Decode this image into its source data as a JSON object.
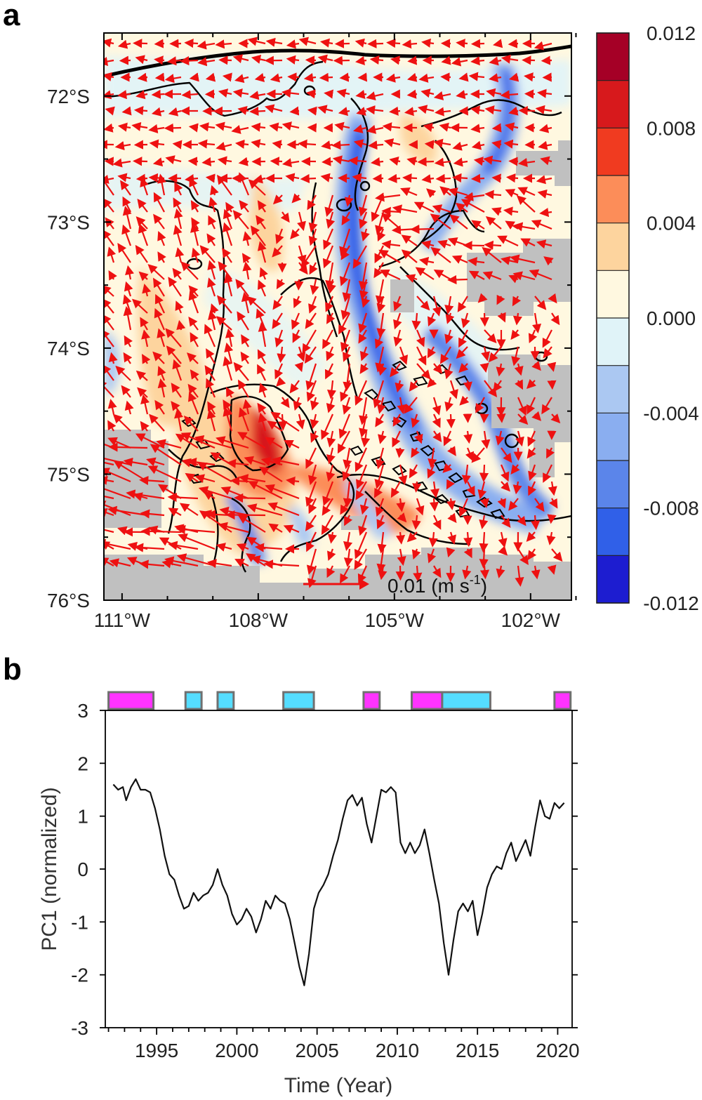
{
  "figure": {
    "panel_a_letter": "a",
    "panel_b_letter": "b"
  },
  "map": {
    "lat_labels": [
      "72°S",
      "73°S",
      "74°S",
      "75°S",
      "76°S"
    ],
    "lat_values": [
      -72,
      -73,
      -74,
      -75,
      -76
    ],
    "lon_labels": [
      "111°W",
      "108°W",
      "105°W",
      "102°W"
    ],
    "lon_values": [
      -111,
      -108,
      -105,
      -102
    ],
    "lon_range": [
      -111.4,
      -101.1
    ],
    "lat_range": [
      -76.0,
      -71.5
    ],
    "colorbar_labels": [
      "0.012",
      "0.008",
      "0.004",
      "0.000",
      "-0.004",
      "-0.008",
      "-0.012"
    ],
    "colorbar_levels": [
      0.012,
      0.01,
      0.008,
      0.006,
      0.004,
      0.002,
      0.0,
      -0.002,
      -0.004,
      -0.006,
      -0.008,
      -0.01,
      -0.012
    ],
    "colorbar_colors": [
      "#a50026",
      "#d7191c",
      "#f03b20",
      "#fc8d59",
      "#fdd49e",
      "#fff8e0",
      "#e0f3f8",
      "#abc8f2",
      "#8aaef0",
      "#5b85ea",
      "#3060e8",
      "#1d1dd0"
    ],
    "reference_arrow_label_main": "0.01 (m s",
    "reference_arrow_label_exp": "-1",
    "reference_arrow_label_close": ")",
    "colors": {
      "arrow": "#ee1111",
      "land": "#c0c0c0",
      "coast": "#000000"
    }
  },
  "chart_data": {
    "type": "line",
    "xlabel": "Time (Year)",
    "ylabel": "PC1 (normalized)",
    "xlim": [
      1991.8,
      2020.9
    ],
    "ylim": [
      -3,
      3
    ],
    "x_ticks": [
      "1995",
      "2000",
      "2005",
      "2010",
      "2015",
      "2020"
    ],
    "x_tick_values": [
      1995,
      2000,
      2005,
      2010,
      2015,
      2020
    ],
    "y_ticks": [
      "3",
      "2",
      "1",
      "0",
      "-1",
      "-2",
      "-3"
    ],
    "y_tick_values": [
      3,
      2,
      1,
      0,
      -1,
      -2,
      -3
    ],
    "series": [
      {
        "color": "#111111",
        "x": [
          1992.3,
          1992.6,
          1992.9,
          1993.1,
          1993.4,
          1993.7,
          1994.0,
          1994.3,
          1994.6,
          1994.9,
          1995.2,
          1995.5,
          1995.8,
          1996.1,
          1996.4,
          1996.7,
          1997.0,
          1997.3,
          1997.6,
          1997.9,
          1998.2,
          1998.5,
          1998.8,
          1999.1,
          1999.4,
          1999.7,
          2000.0,
          2000.3,
          2000.6,
          2000.9,
          2001.2,
          2001.5,
          2001.8,
          2002.1,
          2002.4,
          2002.7,
          2003.0,
          2003.3,
          2003.6,
          2003.9,
          2004.2,
          2004.5,
          2004.8,
          2005.1,
          2005.4,
          2005.7,
          2006.0,
          2006.3,
          2006.6,
          2006.9,
          2007.2,
          2007.5,
          2007.8,
          2008.1,
          2008.4,
          2008.7,
          2009.0,
          2009.3,
          2009.6,
          2009.9,
          2010.2,
          2010.5,
          2010.8,
          2011.1,
          2011.4,
          2011.7,
          2012.0,
          2012.3,
          2012.6,
          2012.9,
          2013.2,
          2013.5,
          2013.8,
          2014.1,
          2014.4,
          2014.7,
          2015.0,
          2015.3,
          2015.6,
          2015.9,
          2016.2,
          2016.5,
          2016.8,
          2017.1,
          2017.4,
          2017.7,
          2018.0,
          2018.3,
          2018.6,
          2018.9,
          2019.2,
          2019.5,
          2019.8,
          2020.1,
          2020.4
        ],
        "values": [
          1.6,
          1.5,
          1.55,
          1.3,
          1.55,
          1.7,
          1.5,
          1.5,
          1.45,
          1.15,
          0.75,
          0.25,
          -0.1,
          -0.2,
          -0.5,
          -0.75,
          -0.7,
          -0.45,
          -0.6,
          -0.5,
          -0.45,
          -0.3,
          0.0,
          -0.3,
          -0.5,
          -0.85,
          -1.05,
          -0.95,
          -0.75,
          -0.9,
          -1.2,
          -0.95,
          -0.6,
          -0.75,
          -0.5,
          -0.6,
          -0.65,
          -0.95,
          -1.4,
          -1.85,
          -2.2,
          -1.6,
          -0.75,
          -0.45,
          -0.3,
          -0.1,
          0.25,
          0.55,
          0.95,
          1.3,
          1.4,
          1.2,
          1.35,
          0.85,
          0.5,
          1.0,
          1.5,
          1.45,
          1.55,
          1.45,
          0.5,
          0.3,
          0.5,
          0.3,
          0.45,
          0.75,
          0.3,
          -0.2,
          -0.65,
          -1.4,
          -2.0,
          -1.35,
          -0.8,
          -0.65,
          -0.8,
          -0.6,
          -1.25,
          -0.85,
          -0.35,
          -0.1,
          0.05,
          0.0,
          0.3,
          0.5,
          0.15,
          0.35,
          0.55,
          0.25,
          0.8,
          1.3,
          1.0,
          0.95,
          1.25,
          1.15,
          1.25
        ]
      }
    ],
    "event_bars": [
      {
        "start": 1992.0,
        "end": 1994.8,
        "color": "#ff33ff"
      },
      {
        "start": 1996.8,
        "end": 1997.8,
        "color": "#55ddff"
      },
      {
        "start": 1998.8,
        "end": 1999.8,
        "color": "#55ddff"
      },
      {
        "start": 2002.9,
        "end": 2004.8,
        "color": "#55ddff"
      },
      {
        "start": 2007.9,
        "end": 2008.9,
        "color": "#ff33ff"
      },
      {
        "start": 2010.9,
        "end": 2012.8,
        "color": "#ff33ff"
      },
      {
        "start": 2012.8,
        "end": 2015.8,
        "color": "#55ddff"
      },
      {
        "start": 2019.8,
        "end": 2020.8,
        "color": "#ff33ff"
      }
    ]
  }
}
